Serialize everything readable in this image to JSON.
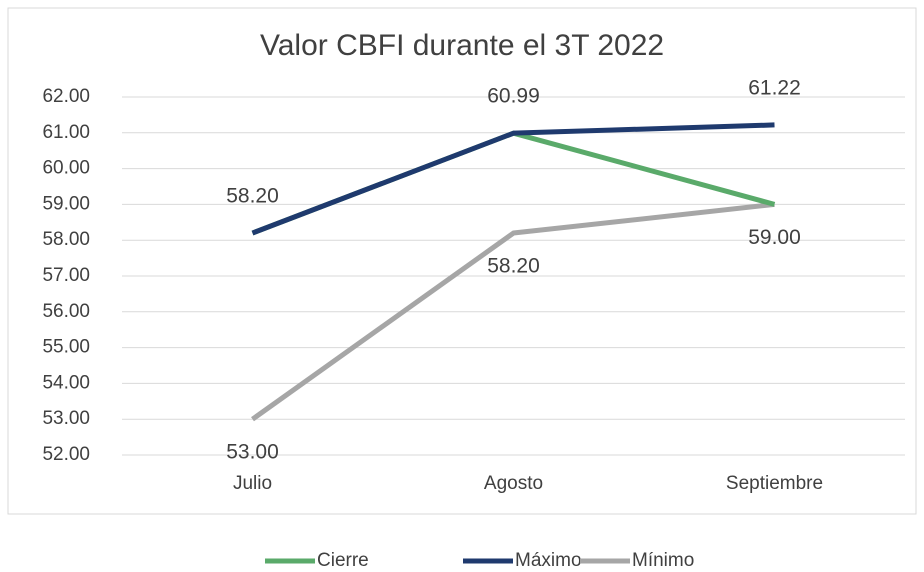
{
  "chart_data": {
    "type": "line",
    "title": "Valor CBFI durante el 3T 2022",
    "categories": [
      "Julio",
      "Agosto",
      "Septiembre"
    ],
    "series": [
      {
        "name": "Cierre",
        "color": "#5aaa6a",
        "values": [
          58.2,
          60.99,
          59.0
        ]
      },
      {
        "name": "Máximo",
        "color": "#1f3a6e",
        "values": [
          58.2,
          60.99,
          61.22
        ],
        "value_labels": [
          "58.20",
          "60.99",
          "61.22"
        ]
      },
      {
        "name": "Mínimo",
        "color": "#a6a6a6",
        "values": [
          53.0,
          58.2,
          59.0
        ],
        "value_labels": [
          "53.00",
          "58.20",
          "59.00"
        ]
      }
    ],
    "ylim": [
      52,
      62
    ],
    "yticks": [
      {
        "value": 52,
        "label": "52.00"
      },
      {
        "value": 53,
        "label": "53.00"
      },
      {
        "value": 54,
        "label": "54.00"
      },
      {
        "value": 55,
        "label": "55.00"
      },
      {
        "value": 56,
        "label": "56.00"
      },
      {
        "value": 57,
        "label": "57.00"
      },
      {
        "value": 58,
        "label": "58.00"
      },
      {
        "value": 59,
        "label": "59.00"
      },
      {
        "value": 60,
        "label": "60.00"
      },
      {
        "value": 61,
        "label": "61.00"
      },
      {
        "value": 62,
        "label": "62.00"
      }
    ],
    "grid": true,
    "legend": "bottom"
  }
}
